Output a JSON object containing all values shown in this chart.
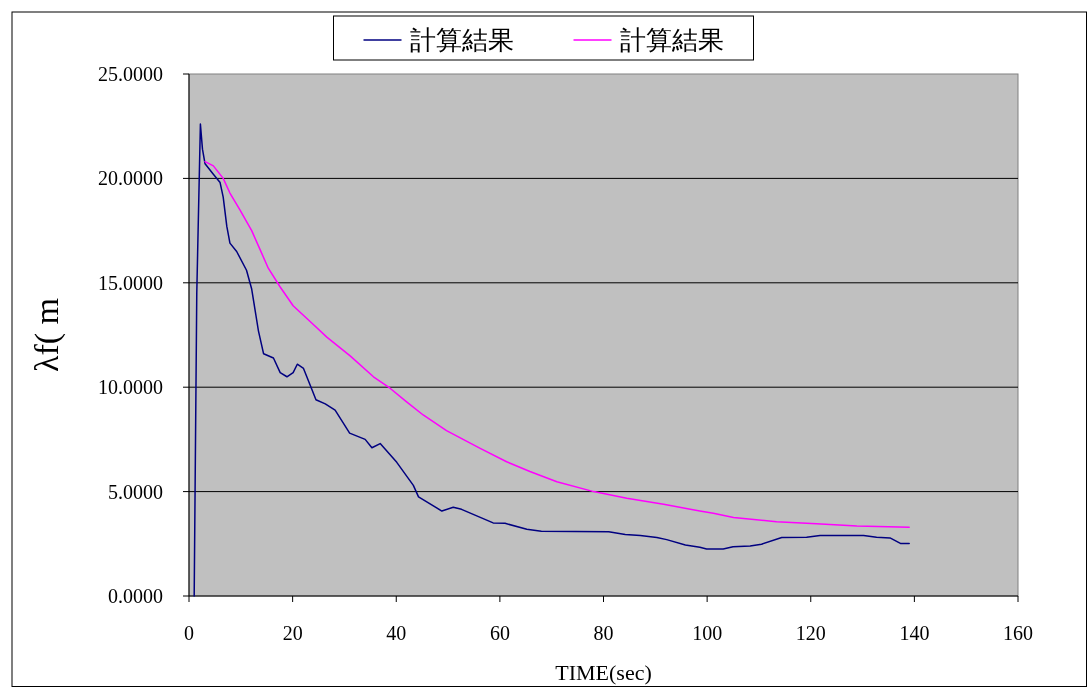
{
  "chart_data": {
    "type": "line",
    "xlabel": "TIME(sec)",
    "ylabel": "λf( m",
    "xlim": [
      0,
      160
    ],
    "xticks": [
      0,
      20,
      40,
      60,
      80,
      100,
      120,
      140,
      160
    ],
    "ylim": [
      0,
      25
    ],
    "yticks": [
      {
        "value": 0,
        "label": "0.0000"
      },
      {
        "value": 5,
        "label": "5.0000"
      },
      {
        "value": 10,
        "label": "10.0000"
      },
      {
        "value": 15,
        "label": "15.0000"
      },
      {
        "value": 20,
        "label": "20.0000"
      },
      {
        "value": 25,
        "label": "25.0000"
      }
    ],
    "grid": "y",
    "legend": "top",
    "line_style": "solid",
    "marker": "none",
    "series": [
      {
        "name": "計算結果",
        "color": "#000080",
        "x": [
          1.0,
          1.5,
          2.2,
          2.6,
          3.1,
          4.7,
          6.0,
          6.6,
          7.3,
          7.9,
          9.2,
          11.1,
          12.1,
          13.4,
          14.4,
          16.3,
          17.6,
          18.9,
          20.1,
          20.9,
          22.1,
          23.7,
          24.5,
          26.3,
          28.2,
          30.0,
          31.0,
          34.0,
          35.3,
          36.9,
          40.1,
          43.3,
          44.3,
          48.8,
          51.0,
          52.6,
          58.7,
          61.0,
          65.2,
          68.0,
          81.0,
          84.2,
          87.1,
          90.3,
          92.2,
          95.8,
          98.6,
          99.9,
          103.1,
          105.0,
          108.3,
          110.5,
          114.4,
          119.2,
          121.8,
          130.2,
          132.7,
          135.3,
          137.3,
          139.0
        ],
        "values": [
          0,
          14.5,
          22.6,
          21.4,
          20.7,
          20.2,
          19.8,
          19.1,
          17.7,
          16.9,
          16.5,
          15.6,
          14.7,
          12.7,
          11.6,
          11.4,
          10.7,
          10.5,
          10.7,
          11.1,
          10.9,
          9.9,
          9.4,
          9.2,
          8.9,
          8.2,
          7.8,
          7.5,
          7.1,
          7.3,
          6.4,
          5.3,
          4.75,
          4.07,
          4.25,
          4.15,
          3.5,
          3.48,
          3.2,
          3.1,
          3.08,
          2.95,
          2.9,
          2.8,
          2.7,
          2.44,
          2.33,
          2.25,
          2.25,
          2.36,
          2.4,
          2.48,
          2.8,
          2.81,
          2.9,
          2.9,
          2.81,
          2.78,
          2.52,
          2.52
        ]
      },
      {
        "name": "計算結果",
        "color": "#ff00ff",
        "x": [
          3.1,
          4.7,
          6.6,
          7.9,
          9.8,
          12.1,
          13.7,
          15.3,
          17.6,
          20.1,
          24.0,
          26.6,
          31.1,
          35.6,
          38.8,
          42.0,
          45.2,
          49.7,
          56.2,
          61.3,
          65.8,
          71.0,
          78.1,
          84.5,
          91.6,
          98.6,
          101.2,
          105.1,
          113.4,
          121.1,
          128.9,
          139.0
        ],
        "values": [
          20.8,
          20.6,
          20.0,
          19.3,
          18.5,
          17.5,
          16.6,
          15.7,
          14.8,
          13.9,
          13.0,
          12.4,
          11.5,
          10.5,
          9.95,
          9.3,
          8.67,
          7.92,
          7.07,
          6.43,
          5.96,
          5.47,
          5.0,
          4.68,
          4.39,
          4.07,
          3.96,
          3.76,
          3.56,
          3.46,
          3.35,
          3.29
        ]
      }
    ]
  }
}
